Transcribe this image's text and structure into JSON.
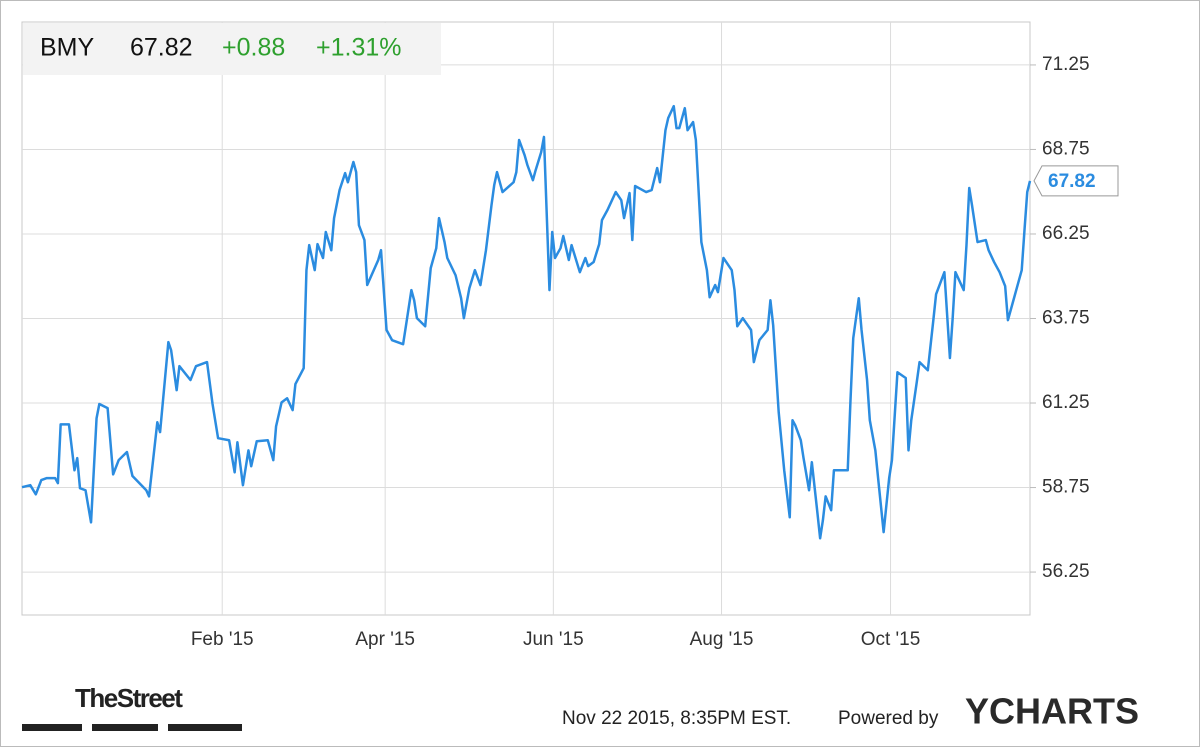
{
  "header": {
    "ticker": "BMY",
    "price": "67.82",
    "change": "+0.88",
    "change_pct": "+1.31%"
  },
  "chart_data": {
    "type": "line",
    "x": [
      0,
      3,
      5,
      7,
      9,
      12,
      13,
      14,
      17,
      19,
      20,
      21,
      23,
      25,
      27,
      28,
      31,
      33,
      35,
      38,
      40,
      45,
      46,
      49,
      50,
      53,
      54,
      56,
      57,
      61,
      63,
      67,
      69,
      71,
      75,
      77,
      78,
      80,
      82,
      83,
      85,
      89,
      91,
      92,
      94,
      96,
      98,
      99,
      102,
      103,
      104,
      106,
      107,
      109,
      110,
      112,
      113,
      115,
      117,
      118,
      120,
      121,
      122,
      124,
      125,
      129,
      130,
      132,
      134,
      138,
      139,
      141,
      142,
      143,
      146,
      148,
      150,
      151,
      153,
      154,
      157,
      159,
      160,
      162,
      164,
      166,
      168,
      170,
      171,
      172,
      174,
      178,
      179,
      180,
      182,
      183,
      185,
      186,
      188,
      189,
      191,
      192,
      193,
      195,
      196,
      198,
      199,
      202,
      204,
      205,
      207,
      209,
      210,
      212,
      215,
      217,
      218,
      220,
      221,
      222,
      226,
      228,
      230,
      231,
      233,
      234,
      236,
      237,
      238,
      240,
      241,
      243,
      244,
      246,
      248,
      249,
      251,
      252,
      254,
      257,
      258,
      259,
      261,
      264,
      265,
      267,
      270,
      271,
      272,
      274,
      276,
      278,
      279,
      280,
      282,
      283,
      285,
      286,
      288,
      289,
      290,
      291,
      293,
      294,
      299,
      300,
      301,
      303,
      304,
      306,
      307,
      309,
      310,
      312,
      314,
      315,
      317,
      320,
      321,
      322,
      324,
      325,
      328,
      330,
      331,
      334,
      336,
      337,
      338,
      341,
      342,
      343,
      344,
      346,
      349,
      350,
      352,
      354,
      356,
      357,
      359,
      362,
      363,
      364,
      365
    ],
    "series": [
      {
        "name": "BMY",
        "color": "#2b8ce0",
        "values": [
          58.76,
          58.82,
          58.55,
          58.97,
          59.03,
          59.03,
          58.88,
          60.62,
          60.62,
          59.26,
          59.62,
          58.73,
          58.67,
          57.72,
          60.8,
          61.22,
          61.1,
          59.14,
          59.56,
          59.8,
          59.09,
          58.67,
          58.49,
          60.68,
          60.39,
          63.05,
          62.81,
          61.63,
          62.34,
          61.93,
          62.34,
          62.46,
          61.22,
          60.21,
          60.15,
          59.2,
          60.09,
          58.82,
          59.85,
          59.38,
          60.12,
          60.15,
          59.56,
          60.56,
          61.27,
          61.39,
          61.04,
          61.81,
          62.28,
          65.18,
          65.92,
          65.18,
          65.95,
          65.54,
          66.31,
          65.77,
          66.72,
          67.55,
          68.05,
          67.78,
          68.38,
          68.08,
          66.51,
          66.07,
          64.74,
          65.48,
          65.77,
          63.41,
          63.11,
          62.99,
          63.52,
          64.59,
          64.29,
          63.76,
          63.52,
          65.24,
          65.83,
          66.72,
          66.01,
          65.54,
          65.03,
          64.35,
          63.76,
          64.65,
          65.18,
          64.74,
          65.77,
          67.1,
          67.7,
          68.08,
          67.49,
          67.78,
          68.08,
          69.03,
          68.58,
          68.29,
          67.84,
          68.14,
          68.67,
          69.12,
          64.59,
          66.31,
          65.54,
          65.83,
          66.19,
          65.48,
          65.92,
          65.12,
          65.54,
          65.3,
          65.42,
          65.95,
          66.66,
          66.96,
          67.49,
          67.25,
          66.72,
          67.46,
          66.07,
          67.67,
          67.49,
          67.55,
          68.2,
          67.78,
          69.32,
          69.68,
          70.03,
          69.38,
          69.38,
          69.97,
          69.32,
          69.56,
          69.03,
          66.01,
          65.18,
          64.38,
          64.74,
          64.53,
          65.54,
          65.18,
          64.59,
          63.52,
          63.76,
          63.41,
          62.46,
          63.11,
          63.41,
          64.29,
          63.55,
          60.98,
          59.26,
          57.87,
          60.74,
          60.59,
          60.15,
          59.62,
          58.67,
          59.5,
          58.02,
          57.25,
          57.78,
          58.49,
          58.08,
          59.26,
          59.26,
          61.33,
          63.17,
          64.35,
          63.41,
          61.93,
          60.74,
          59.85,
          59.03,
          57.43,
          59.03,
          59.56,
          62.16,
          61.99,
          59.85,
          60.74,
          61.87,
          62.46,
          62.22,
          63.7,
          64.47,
          65.12,
          62.58,
          63.76,
          65.12,
          64.59,
          65.92,
          67.61,
          67.1,
          66.01,
          66.07,
          65.77,
          65.42,
          65.12,
          64.71,
          63.7,
          64.29,
          65.18,
          66.36,
          67.49,
          67.82
        ]
      }
    ],
    "xlim": [
      0,
      365
    ],
    "xticks": [
      {
        "value": 72.5,
        "label": "Feb '15"
      },
      {
        "value": 131.5,
        "label": "Apr '15"
      },
      {
        "value": 192.4,
        "label": "Jun '15"
      },
      {
        "value": 253.3,
        "label": "Aug '15"
      },
      {
        "value": 314.5,
        "label": "Oct '15"
      }
    ],
    "ylim": [
      54.98,
      72.52
    ],
    "yticks": [
      56.25,
      58.75,
      61.25,
      63.75,
      66.25,
      68.75,
      71.25
    ],
    "grid": true
  },
  "footer": {
    "source": "TheStreet",
    "timestamp": "Nov 22 2015, 8:35PM EST.",
    "powered": "Powered by",
    "brand": "YCHARTS"
  }
}
